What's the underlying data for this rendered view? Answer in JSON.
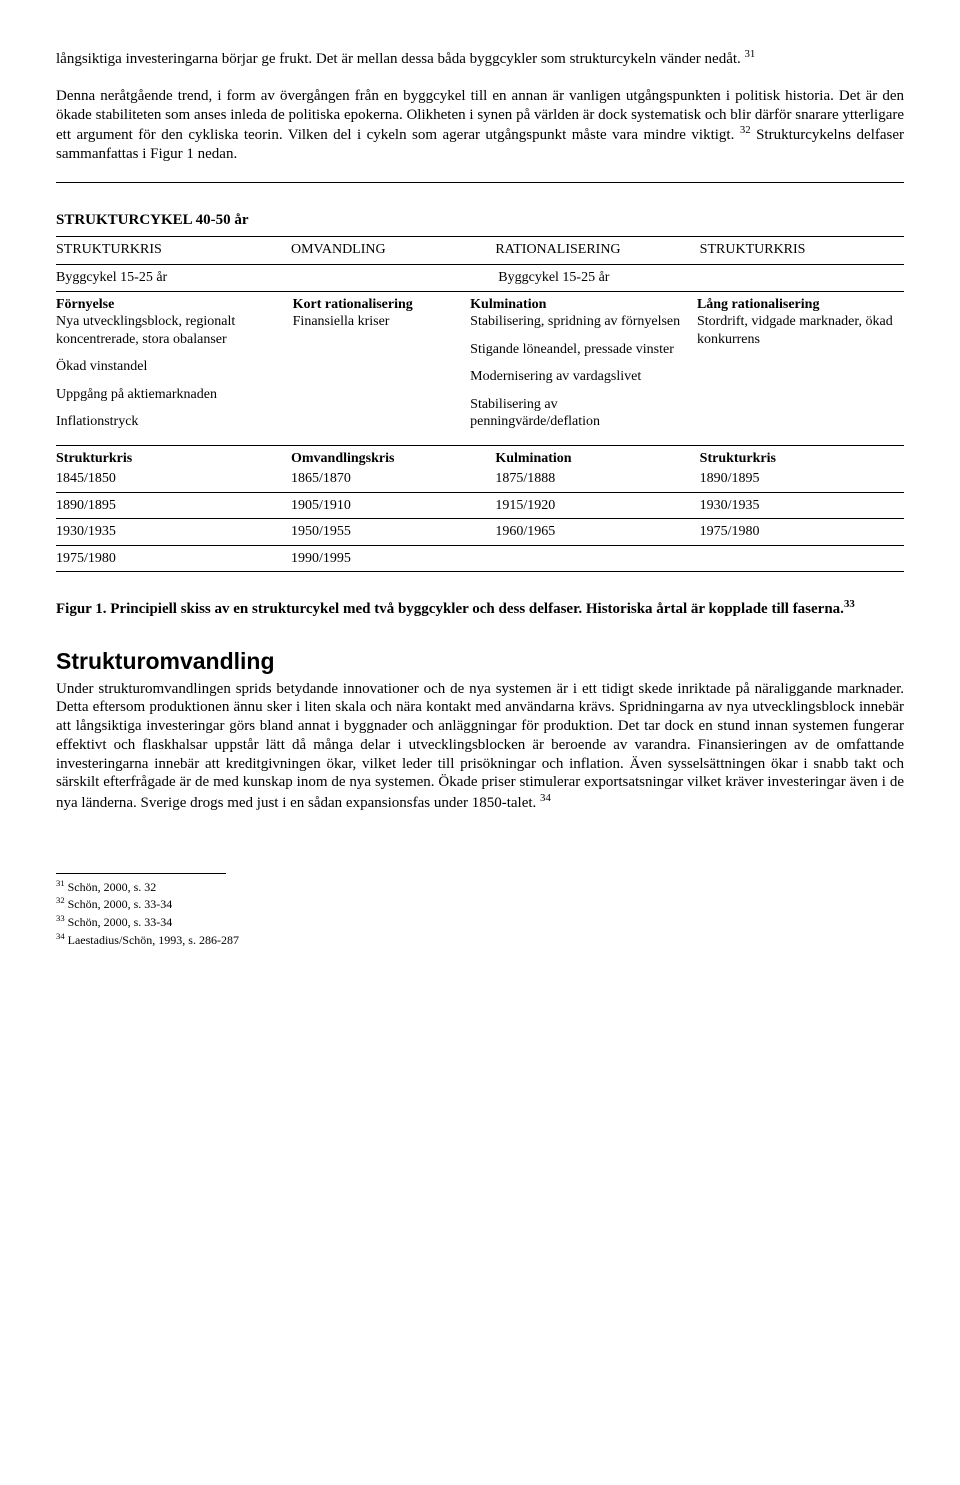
{
  "intro": {
    "p1a": "långsiktiga investeringarna börjar ge frukt. Det är mellan dessa båda byggcykler som strukturcykeln vänder nedåt. ",
    "p1_fn": "31",
    "p2a": "Denna neråtgående trend, i form av övergången från en byggcykel till en annan är vanligen utgångspunkten i politisk historia. Det är den ökade stabiliteten som anses inleda de politiska epokerna. Olikheten i synen på världen är dock systematisk och blir därför snarare ytterligare ett argument för den cykliska teorin. Vilken del i cykeln som agerar utgångspunkt måste vara mindre viktigt. ",
    "p2_fn": "32",
    "p2b": " Strukturcykelns delfaser sammanfattas i Figur 1 nedan."
  },
  "table": {
    "title": "STRUKTURCYKEL 40-50 år",
    "phases": [
      "STRUKTURKRIS",
      "OMVANDLING",
      "RATIONALISERING",
      "STRUKTURKRIS"
    ],
    "subcycles": [
      "Byggcykel 15-25 år",
      "",
      "Byggcykel 15-25 år",
      ""
    ],
    "col1": {
      "head": "Förnyelse",
      "l1": "Nya utvecklingsblock, regionalt koncentrerade, stora obalanser",
      "l2": "Ökad vinstandel",
      "l3": "Uppgång på aktiemarknaden",
      "l4": "Inflationstryck"
    },
    "col2": {
      "head": "Kort rationalisering",
      "l1": "Finansiella kriser"
    },
    "col3": {
      "head": "Kulmination",
      "l1": "Stabilisering, spridning av förnyelsen",
      "l2": "Stigande löneandel, pressade vinster",
      "l3": "Modernisering av vardagslivet",
      "l4": "Stabilisering av penningvärde/deflation"
    },
    "col4": {
      "head": "Lång rationalisering",
      "l1": "Stordrift, vidgade marknader, ökad konkurrens"
    },
    "years_header": [
      "Strukturkris",
      "Omvandlingskris",
      "Kulmination",
      "Strukturkris"
    ],
    "years": [
      [
        "1845/1850",
        "1865/1870",
        "1875/1888",
        "1890/1895"
      ],
      [
        "1890/1895",
        "1905/1910",
        "1915/1920",
        "1930/1935"
      ],
      [
        "1930/1935",
        "1950/1955",
        "1960/1965",
        "1975/1980"
      ],
      [
        "1975/1980",
        "1990/1995",
        "",
        ""
      ]
    ]
  },
  "caption": {
    "a": "Figur 1. Principiell skiss av en strukturcykel med två byggcykler och dess delfaser. Historiska årtal är kopplade till faserna.",
    "fn": "33"
  },
  "section": {
    "title": "Strukturomvandling",
    "body": "Under strukturomvandlingen sprids betydande innovationer och de nya systemen är i ett tidigt skede inriktade på näraliggande marknader. Detta eftersom produktionen ännu sker i liten skala och nära kontakt med användarna krävs. Spridningarna av nya utvecklingsblock innebär att långsiktiga investeringar görs bland annat i byggnader och anläggningar för produktion. Det tar dock en stund innan systemen fungerar effektivt och flaskhalsar uppstår lätt då många delar i utvecklingsblocken är beroende av varandra. Finansieringen av de omfattande investeringarna innebär att kreditgivningen ökar, vilket leder till prisökningar och inflation. Även sysselsättningen ökar i snabb takt och särskilt efterfrågade är de med kunskap inom de nya systemen. Ökade priser stimulerar exportsatsningar vilket kräver investeringar även i de nya länderna. Sverige drogs med just i en sådan expansionsfas under 1850-talet. ",
    "body_fn": "34"
  },
  "footnotes": {
    "n31": "Schön, 2000, s. 32",
    "n32": "Schön, 2000, s. 33-34",
    "n33": "Schön, 2000, s. 33-34",
    "n34": "Laestadius/Schön, 1993, s. 286-287"
  }
}
